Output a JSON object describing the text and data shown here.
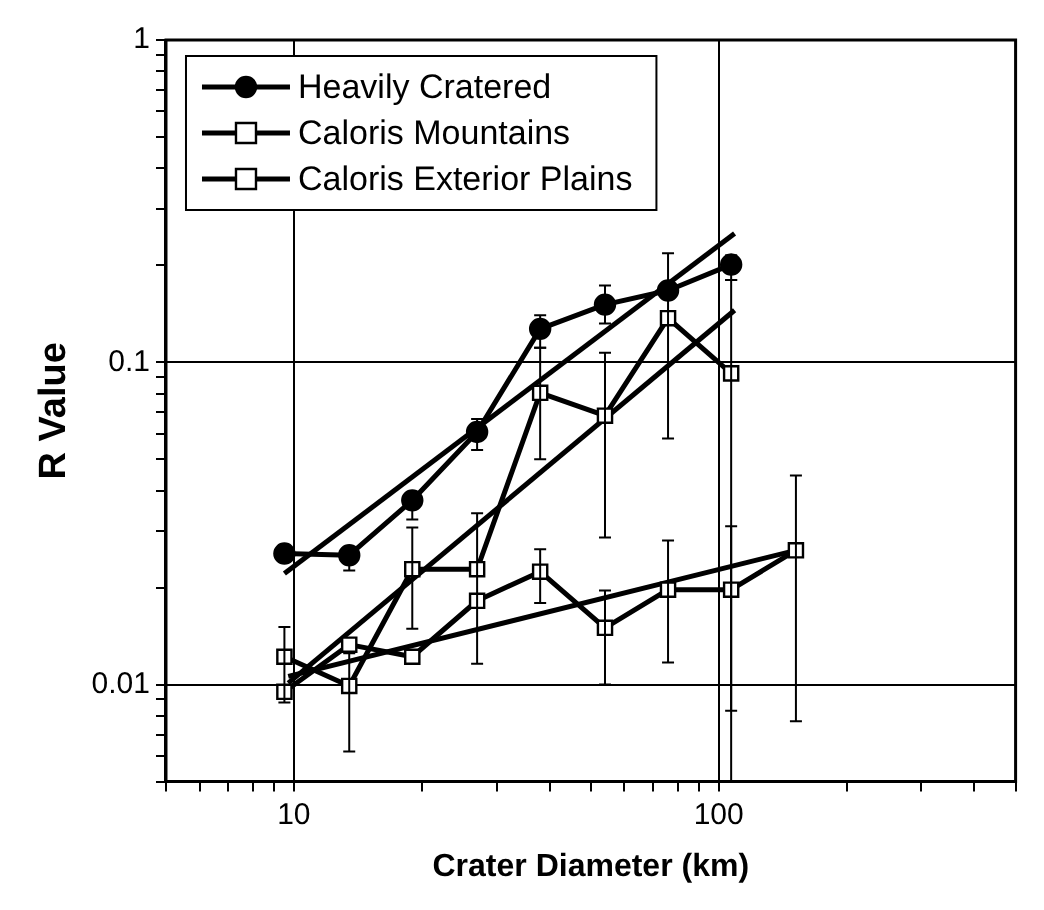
{
  "chart_data": {
    "type": "line",
    "xlabel": "Crater Diameter (km)",
    "ylabel": "R Value",
    "log": "xy",
    "grid": true,
    "legend": "top left",
    "line_style": "solid",
    "xlim": [
      5,
      500
    ],
    "ylim": [
      0.005,
      1
    ],
    "xticks": [
      {
        "value": 5,
        "label": null
      },
      {
        "value": 6,
        "label": null
      },
      {
        "value": 7,
        "label": null
      },
      {
        "value": 8,
        "label": null
      },
      {
        "value": 9,
        "label": null
      },
      10,
      {
        "value": 20,
        "label": null
      },
      {
        "value": 30,
        "label": null
      },
      {
        "value": 40,
        "label": null
      },
      {
        "value": 50,
        "label": null
      },
      {
        "value": 60,
        "label": null
      },
      {
        "value": 70,
        "label": null
      },
      {
        "value": 80,
        "label": null
      },
      {
        "value": 90,
        "label": null
      },
      100,
      {
        "value": 200,
        "label": null
      },
      {
        "value": 300,
        "label": null
      },
      {
        "value": 400,
        "label": null
      },
      {
        "value": 500,
        "label": null
      }
    ],
    "yticks": [
      {
        "value": 0.005,
        "label": null
      },
      {
        "value": 0.006,
        "label": null
      },
      {
        "value": 0.007,
        "label": null
      },
      {
        "value": 0.008,
        "label": null
      },
      {
        "value": 0.009,
        "label": null
      },
      0.01,
      {
        "value": 0.02,
        "label": null
      },
      {
        "value": 0.03,
        "label": null
      },
      {
        "value": 0.04,
        "label": null
      },
      {
        "value": 0.05,
        "label": null
      },
      {
        "value": 0.06,
        "label": null
      },
      {
        "value": 0.07,
        "label": null
      },
      {
        "value": 0.08,
        "label": null
      },
      {
        "value": 0.09,
        "label": null
      },
      0.1,
      {
        "value": 0.2,
        "label": null
      },
      {
        "value": 0.3,
        "label": null
      },
      {
        "value": 0.4,
        "label": null
      },
      {
        "value": 0.5,
        "label": null
      },
      {
        "value": 0.6,
        "label": null
      },
      {
        "value": 0.7,
        "label": null
      },
      {
        "value": 0.8,
        "label": null
      },
      {
        "value": 0.9,
        "label": null
      },
      1
    ],
    "series": [
      {
        "name": "Heavily Cratered",
        "color": "#000000",
        "marker": "circle",
        "x": [
          9.5,
          13.5,
          19,
          27,
          38,
          54,
          76,
          107
        ],
        "values": [
          0.0255,
          0.0252,
          0.0373,
          0.0608,
          0.127,
          0.151,
          0.167,
          0.201
        ],
        "errors": [
          null,
          [
            0.0226,
            0.0266
          ],
          [
            0.0325,
            0.0394
          ],
          [
            0.0534,
            0.0667
          ],
          [
            0.111,
            0.14
          ],
          [
            0.132,
            0.173
          ],
          null,
          [
            0.18,
            0.215
          ]
        ]
      },
      {
        "name": "Caloris Mountains",
        "color": "#000000",
        "marker": "square",
        "x": [
          9.5,
          13.5,
          19,
          27,
          38,
          54,
          76,
          107
        ],
        "values": [
          0.0122,
          0.0099,
          0.0228,
          0.0228,
          0.0804,
          0.0683,
          0.137,
          0.0924
        ],
        "errors": [
          [
            0.0088,
            0.0151
          ],
          [
            0.0062,
            0.0125
          ],
          [
            0.0149,
            0.0307
          ],
          null,
          [
            0.05,
            0.111
          ],
          [
            0.0286,
            0.107
          ],
          [
            0.058,
            0.218
          ],
          [
            0.005,
            0.18
          ]
        ]
      },
      {
        "name": "Caloris Exterior Plains",
        "color": "#000000",
        "marker": "square",
        "x": [
          9.5,
          13.5,
          19,
          27,
          38,
          54,
          76,
          107,
          152
        ],
        "values": [
          0.0095,
          0.0133,
          0.0122,
          0.0182,
          0.0224,
          0.015,
          0.0197,
          0.0197,
          0.0261
        ],
        "errors": [
          null,
          null,
          null,
          [
            0.0116,
            0.034
          ],
          [
            0.0179,
            0.0263
          ],
          [
            0.01,
            0.0196
          ],
          [
            0.0117,
            0.028
          ],
          [
            0.0083,
            0.031
          ],
          [
            0.0077,
            0.0445
          ]
        ]
      },
      {
        "type": "line",
        "color": "#000000",
        "marker": "none",
        "x": [
          9.5,
          109
        ],
        "values": [
          0.0221,
          0.251
        ]
      },
      {
        "type": "line",
        "color": "#000000",
        "marker": "none",
        "x": [
          9.7,
          109
        ],
        "values": [
          0.0101,
          0.145
        ]
      },
      {
        "type": "line",
        "color": "#000000",
        "marker": "none",
        "x": [
          9.7,
          152
        ],
        "values": [
          0.0106,
          0.0261
        ]
      }
    ]
  }
}
